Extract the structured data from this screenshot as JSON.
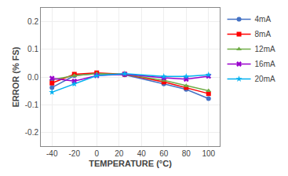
{
  "chart_data": {
    "type": "line",
    "x": [
      -40,
      -20,
      0,
      25,
      60,
      80,
      100
    ],
    "series": [
      {
        "name": "4mA",
        "color": "#4472C4",
        "marker": "circle",
        "values": [
          -0.038,
          0.005,
          0.012,
          0.008,
          -0.025,
          -0.045,
          -0.078
        ]
      },
      {
        "name": "8mA",
        "color": "#FF0000",
        "marker": "square",
        "values": [
          -0.022,
          0.01,
          0.015,
          0.01,
          -0.018,
          -0.038,
          -0.06
        ]
      },
      {
        "name": "12mA",
        "color": "#70AD47",
        "marker": "triangle-up",
        "values": [
          -0.01,
          0.005,
          0.012,
          0.01,
          -0.012,
          -0.032,
          -0.05
        ]
      },
      {
        "name": "16mA",
        "color": "#9900CC",
        "marker": "x",
        "values": [
          -0.005,
          -0.015,
          0.005,
          0.01,
          -0.003,
          -0.008,
          0.003
        ]
      },
      {
        "name": "20mA",
        "color": "#00B0F0",
        "marker": "star",
        "values": [
          -0.055,
          -0.025,
          0.005,
          0.012,
          0.002,
          0.002,
          0.008
        ]
      }
    ],
    "xlabel": "TEMPERATURE (°C)",
    "ylabel": "ERROR (% FS)",
    "xlim": [
      -50,
      110
    ],
    "xticks": [
      -40,
      -20,
      0,
      20,
      40,
      60,
      80,
      100
    ],
    "ylim": [
      -0.25,
      0.25
    ],
    "yticks": [
      -0.2,
      -0.1,
      {
        "value": 0,
        "label": "0.0"
      },
      0.1,
      0.2
    ],
    "grid": true,
    "legend": "right"
  }
}
